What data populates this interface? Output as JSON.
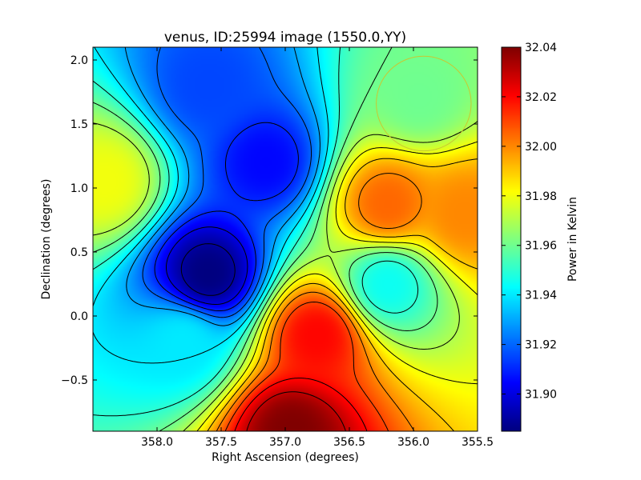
{
  "chart_data": {
    "type": "heatmap",
    "title": "venus, ID:25994 image (1550.0,YY)",
    "xlabel": "Right Ascension (degrees)",
    "ylabel": "Declination (degrees)",
    "colorbar_label": "Power in Kelvin",
    "xlim": [
      358.5,
      355.5
    ],
    "ylim": [
      -0.9,
      2.1
    ],
    "x_ticks": [
      358.0,
      357.5,
      357.0,
      356.5,
      356.0,
      355.5
    ],
    "x_tick_labels": [
      "358.0",
      "357.5",
      "357.0",
      "356.5",
      "356.0",
      "355.5"
    ],
    "y_ticks": [
      -0.5,
      0.0,
      0.5,
      1.0,
      1.5,
      2.0
    ],
    "y_tick_labels": [
      "−0.5",
      "0.0",
      "0.5",
      "1.0",
      "1.5",
      "2.0"
    ],
    "colorbar_range": [
      31.885,
      32.04
    ],
    "colorbar_ticks": [
      31.9,
      31.92,
      31.94,
      31.96,
      31.98,
      32.0,
      32.02,
      32.04
    ],
    "colorbar_tick_labels": [
      "31.90",
      "31.92",
      "31.94",
      "31.96",
      "31.98",
      "32.00",
      "32.02",
      "32.04"
    ],
    "colormap": "jet",
    "contours": true,
    "features": [
      {
        "kind": "minimum",
        "ra": 357.6,
        "dec": 0.33,
        "value": 31.885
      },
      {
        "kind": "minimum",
        "ra": 357.15,
        "dec": 1.2,
        "value": 31.905
      },
      {
        "kind": "minimum",
        "ra": 356.2,
        "dec": 0.25,
        "value": 31.945
      },
      {
        "kind": "minimum",
        "ra": 355.95,
        "dec": 1.7,
        "value": 31.96
      },
      {
        "kind": "minimum",
        "ra": 357.6,
        "dec": 1.8,
        "value": 31.915
      },
      {
        "kind": "minimum",
        "ra": 357.8,
        "dec": -0.2,
        "value": 31.94
      },
      {
        "kind": "maximum",
        "ra": 358.4,
        "dec": 1.05,
        "value": 31.98
      },
      {
        "kind": "maximum",
        "ra": 356.95,
        "dec": -0.9,
        "value": 32.04
      },
      {
        "kind": "maximum",
        "ra": 356.75,
        "dec": -0.15,
        "value": 32.02
      },
      {
        "kind": "maximum",
        "ra": 356.2,
        "dec": 0.87,
        "value": 32.005
      },
      {
        "kind": "maximum",
        "ra": 355.6,
        "dec": 0.8,
        "value": 32.0
      }
    ],
    "beam_circle": {
      "ra": 355.92,
      "dec": 1.66,
      "radius_deg": 0.37,
      "color": "#c8c832"
    }
  }
}
